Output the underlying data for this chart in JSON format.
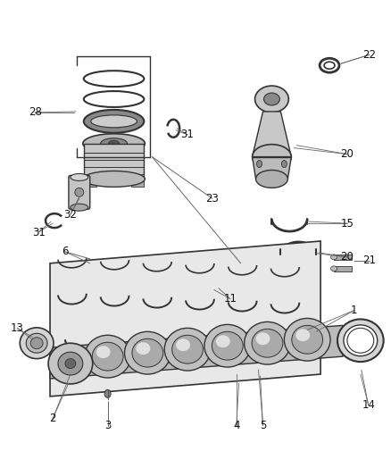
{
  "background_color": "#ffffff",
  "line_color": "#333333",
  "label_fontsize": 8.5,
  "fig_w": 4.38,
  "fig_h": 5.33,
  "dpi": 100
}
